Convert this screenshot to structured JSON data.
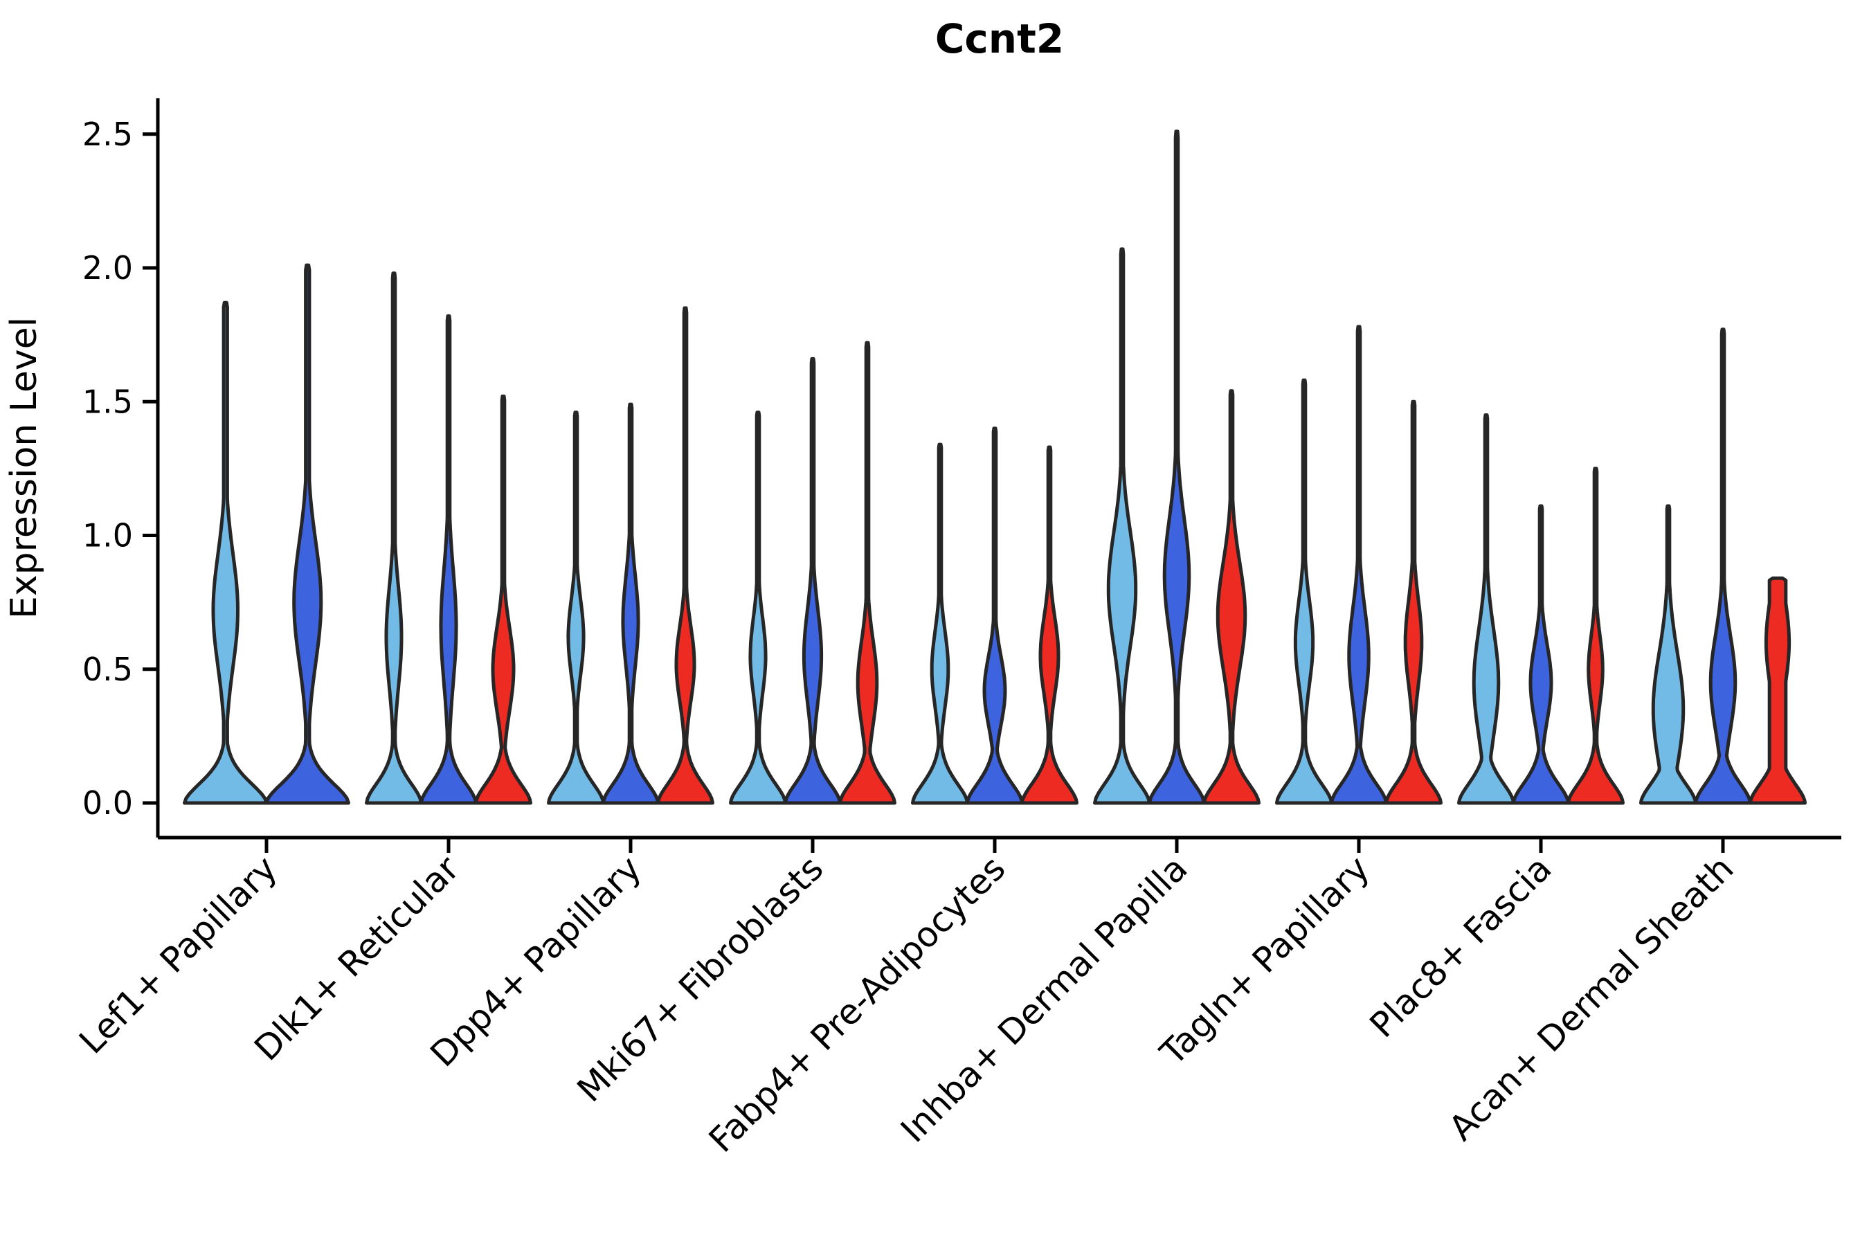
{
  "chart_data": {
    "type": "violin",
    "title": "Ccnt2",
    "ylabel": "Expression Level",
    "xlabel": "",
    "ylim": [
      0,
      2.6
    ],
    "yticks": [
      0.0,
      0.5,
      1.0,
      1.5,
      2.0,
      2.5
    ],
    "ytick_labels": [
      "0.0",
      "0.5",
      "1.0",
      "1.5",
      "2.0",
      "2.5"
    ],
    "grid": false,
    "legend_position": "none",
    "colors": {
      "light_blue": "#73BBE7",
      "dark_blue": "#3D63DF",
      "red": "#EE2B23",
      "outline": "#262626",
      "axis": "#000000"
    },
    "categories": [
      "Lef1+ Papillary",
      "Dlk1+ Reticular",
      "Dpp4+ Papillary",
      "Mki67+ Fibroblasts",
      "Fabp4+ Pre-Adipocytes",
      "Inhba+ Dermal Papilla",
      "Tagln+ Papillary",
      "Plac8+ Fascia",
      "Acan+ Dermal Sheath"
    ],
    "groups": [
      {
        "category": "Lef1+ Papillary",
        "violins": [
          {
            "series": "light_blue",
            "max": 1.87,
            "bulge_center": 0.72,
            "bulge_amp": 0.3,
            "bulge_sigma": 0.3
          },
          {
            "series": "dark_blue",
            "max": 2.01,
            "bulge_center": 0.75,
            "bulge_amp": 0.33,
            "bulge_sigma": 0.32
          }
        ]
      },
      {
        "category": "Dlk1+ Reticular",
        "violins": [
          {
            "series": "light_blue",
            "max": 1.98,
            "bulge_center": 0.62,
            "bulge_amp": 0.28,
            "bulge_sigma": 0.26
          },
          {
            "series": "dark_blue",
            "max": 1.82,
            "bulge_center": 0.66,
            "bulge_amp": 0.28,
            "bulge_sigma": 0.3
          },
          {
            "series": "red",
            "max": 1.52,
            "bulge_center": 0.5,
            "bulge_amp": 0.38,
            "bulge_sigma": 0.22
          }
        ]
      },
      {
        "category": "Dpp4+ Papillary",
        "violins": [
          {
            "series": "light_blue",
            "max": 1.46,
            "bulge_center": 0.62,
            "bulge_amp": 0.28,
            "bulge_sigma": 0.2
          },
          {
            "series": "dark_blue",
            "max": 1.49,
            "bulge_center": 0.68,
            "bulge_amp": 0.28,
            "bulge_sigma": 0.24
          },
          {
            "series": "red",
            "max": 1.85,
            "bulge_center": 0.52,
            "bulge_amp": 0.33,
            "bulge_sigma": 0.2
          }
        ]
      },
      {
        "category": "Mki67+ Fibroblasts",
        "violins": [
          {
            "series": "light_blue",
            "max": 1.46,
            "bulge_center": 0.55,
            "bulge_amp": 0.28,
            "bulge_sigma": 0.2
          },
          {
            "series": "dark_blue",
            "max": 1.66,
            "bulge_center": 0.55,
            "bulge_amp": 0.32,
            "bulge_sigma": 0.24
          },
          {
            "series": "red",
            "max": 1.72,
            "bulge_center": 0.45,
            "bulge_amp": 0.35,
            "bulge_sigma": 0.22
          }
        ]
      },
      {
        "category": "Fabp4+ Pre-Adipocytes",
        "violins": [
          {
            "series": "light_blue",
            "max": 1.34,
            "bulge_center": 0.5,
            "bulge_amp": 0.3,
            "bulge_sigma": 0.2
          },
          {
            "series": "dark_blue",
            "max": 1.4,
            "bulge_center": 0.42,
            "bulge_amp": 0.38,
            "bulge_sigma": 0.18
          },
          {
            "series": "red",
            "max": 1.33,
            "bulge_center": 0.55,
            "bulge_amp": 0.33,
            "bulge_sigma": 0.2
          }
        ]
      },
      {
        "category": "Inhba+ Dermal Papilla",
        "violins": [
          {
            "series": "light_blue",
            "max": 2.07,
            "bulge_center": 0.8,
            "bulge_amp": 0.5,
            "bulge_sigma": 0.3
          },
          {
            "series": "dark_blue",
            "max": 2.51,
            "bulge_center": 0.85,
            "bulge_amp": 0.45,
            "bulge_sigma": 0.3
          },
          {
            "series": "red",
            "max": 1.54,
            "bulge_center": 0.7,
            "bulge_amp": 0.5,
            "bulge_sigma": 0.28
          }
        ]
      },
      {
        "category": "Tagln+ Papillary",
        "violins": [
          {
            "series": "light_blue",
            "max": 1.58,
            "bulge_center": 0.6,
            "bulge_amp": 0.32,
            "bulge_sigma": 0.22
          },
          {
            "series": "dark_blue",
            "max": 1.78,
            "bulge_center": 0.55,
            "bulge_amp": 0.36,
            "bulge_sigma": 0.25
          },
          {
            "series": "red",
            "max": 1.5,
            "bulge_center": 0.6,
            "bulge_amp": 0.3,
            "bulge_sigma": 0.22
          }
        ]
      },
      {
        "category": "Plac8+ Fascia",
        "violins": [
          {
            "series": "light_blue",
            "max": 1.45,
            "bulge_center": 0.45,
            "bulge_amp": 0.45,
            "bulge_sigma": 0.28
          },
          {
            "series": "dark_blue",
            "max": 1.11,
            "bulge_center": 0.45,
            "bulge_amp": 0.38,
            "bulge_sigma": 0.2
          },
          {
            "series": "red",
            "max": 1.25,
            "bulge_center": 0.5,
            "bulge_amp": 0.26,
            "bulge_sigma": 0.18
          }
        ]
      },
      {
        "category": "Acan+ Dermal Sheath",
        "violins": [
          {
            "series": "light_blue",
            "max": 1.11,
            "bulge_center": 0.35,
            "bulge_amp": 0.55,
            "bulge_sigma": 0.3
          },
          {
            "series": "dark_blue",
            "max": 1.77,
            "bulge_center": 0.45,
            "bulge_amp": 0.45,
            "bulge_sigma": 0.25
          },
          {
            "series": "red",
            "max": 0.84,
            "bulge_center": 0.6,
            "bulge_amp": 0.42,
            "bulge_sigma": 0.25,
            "tip_width": 0.3
          }
        ]
      }
    ]
  }
}
